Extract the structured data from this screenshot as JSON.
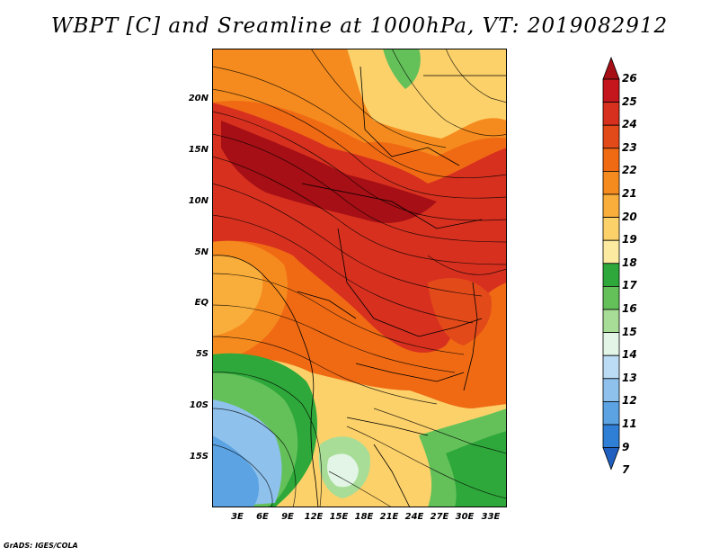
{
  "title": "WBPT [C] and Sreamline at 1000hPa, VT: 2019082912",
  "credit": "GrADS: IGES/COLA",
  "lat_labels": [
    "20N",
    "15N",
    "10N",
    "5N",
    "EQ",
    "5S",
    "10S",
    "15S"
  ],
  "lon_labels": [
    "3E",
    "6E",
    "9E",
    "12E",
    "15E",
    "18E",
    "21E",
    "24E",
    "27E",
    "30E",
    "33E"
  ],
  "colorbar": {
    "levels": [
      "26",
      "25",
      "24",
      "23",
      "22",
      "21",
      "20",
      "19",
      "18",
      "17",
      "16",
      "15",
      "14",
      "13",
      "12",
      "11",
      "9",
      "7"
    ],
    "colors": [
      "#a50f15",
      "#c4161c",
      "#d7301f",
      "#e34a1a",
      "#f06a14",
      "#f58b1e",
      "#f9ad3a",
      "#fcd16a",
      "#fbeaa0",
      "#2ea83a",
      "#64c15a",
      "#a7dd96",
      "#e2f5e6",
      "#bcdcf5",
      "#8ec1ec",
      "#5ca3e3",
      "#2f7fd6",
      "#1f5fbf"
    ]
  },
  "map": {
    "extent": {
      "lon": [
        0,
        35
      ],
      "lat": [
        -20,
        25
      ]
    },
    "field": "Wet-bulb potential temperature",
    "units": "C",
    "level": "1000hPa",
    "valid_time": "2019082912"
  }
}
